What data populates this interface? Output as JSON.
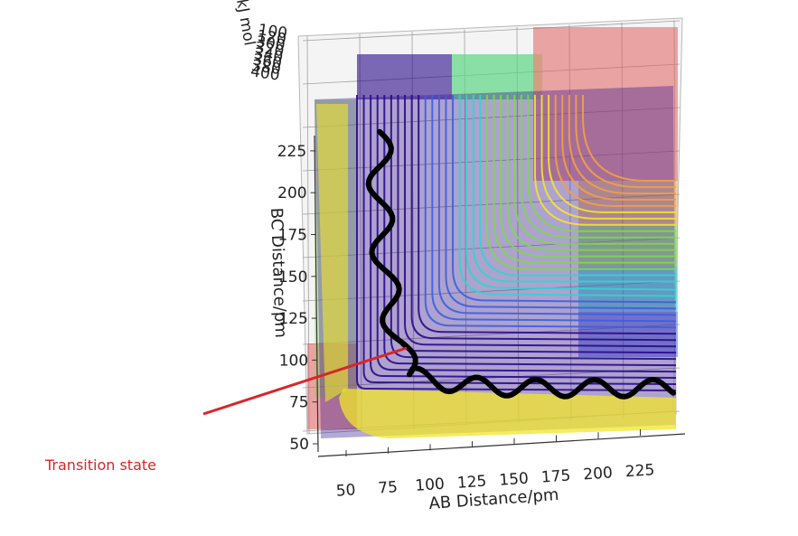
{
  "chart_data": {
    "type": "surface-contour-3d",
    "xlabel": "AB Distance/pm",
    "ylabel": "BC Distance/pm",
    "zlabel_fragment": "kJ mol",
    "x_ticks": [
      "50",
      "75",
      "100",
      "125",
      "150",
      "175",
      "200",
      "225"
    ],
    "y_ticks": [
      "50",
      "75",
      "100",
      "125",
      "150",
      "175",
      "200",
      "225"
    ],
    "z_ticks": [
      "100",
      "120",
      "300",
      "320",
      "340",
      "360",
      "380",
      "400"
    ],
    "xlim": [
      40,
      250
    ],
    "ylim": [
      40,
      250
    ],
    "trajectory": {
      "description_units": "pm",
      "start": [
        70,
        232
      ],
      "saddle": [
        90,
        90
      ],
      "end": [
        250,
        83
      ]
    },
    "annotation": {
      "text": "Transition state",
      "color": "#d62728",
      "points_to": [
        90,
        90
      ]
    },
    "colors": {
      "low": "#2a0a8a",
      "mid_blue": "#3b5fe0",
      "cyan": "#2fd6d0",
      "green": "#7dd84a",
      "yellow": "#f2e52a",
      "orange": "#f2a040",
      "red": "#e06060",
      "trajectory": "#000000",
      "arrow": "#d62728"
    }
  }
}
